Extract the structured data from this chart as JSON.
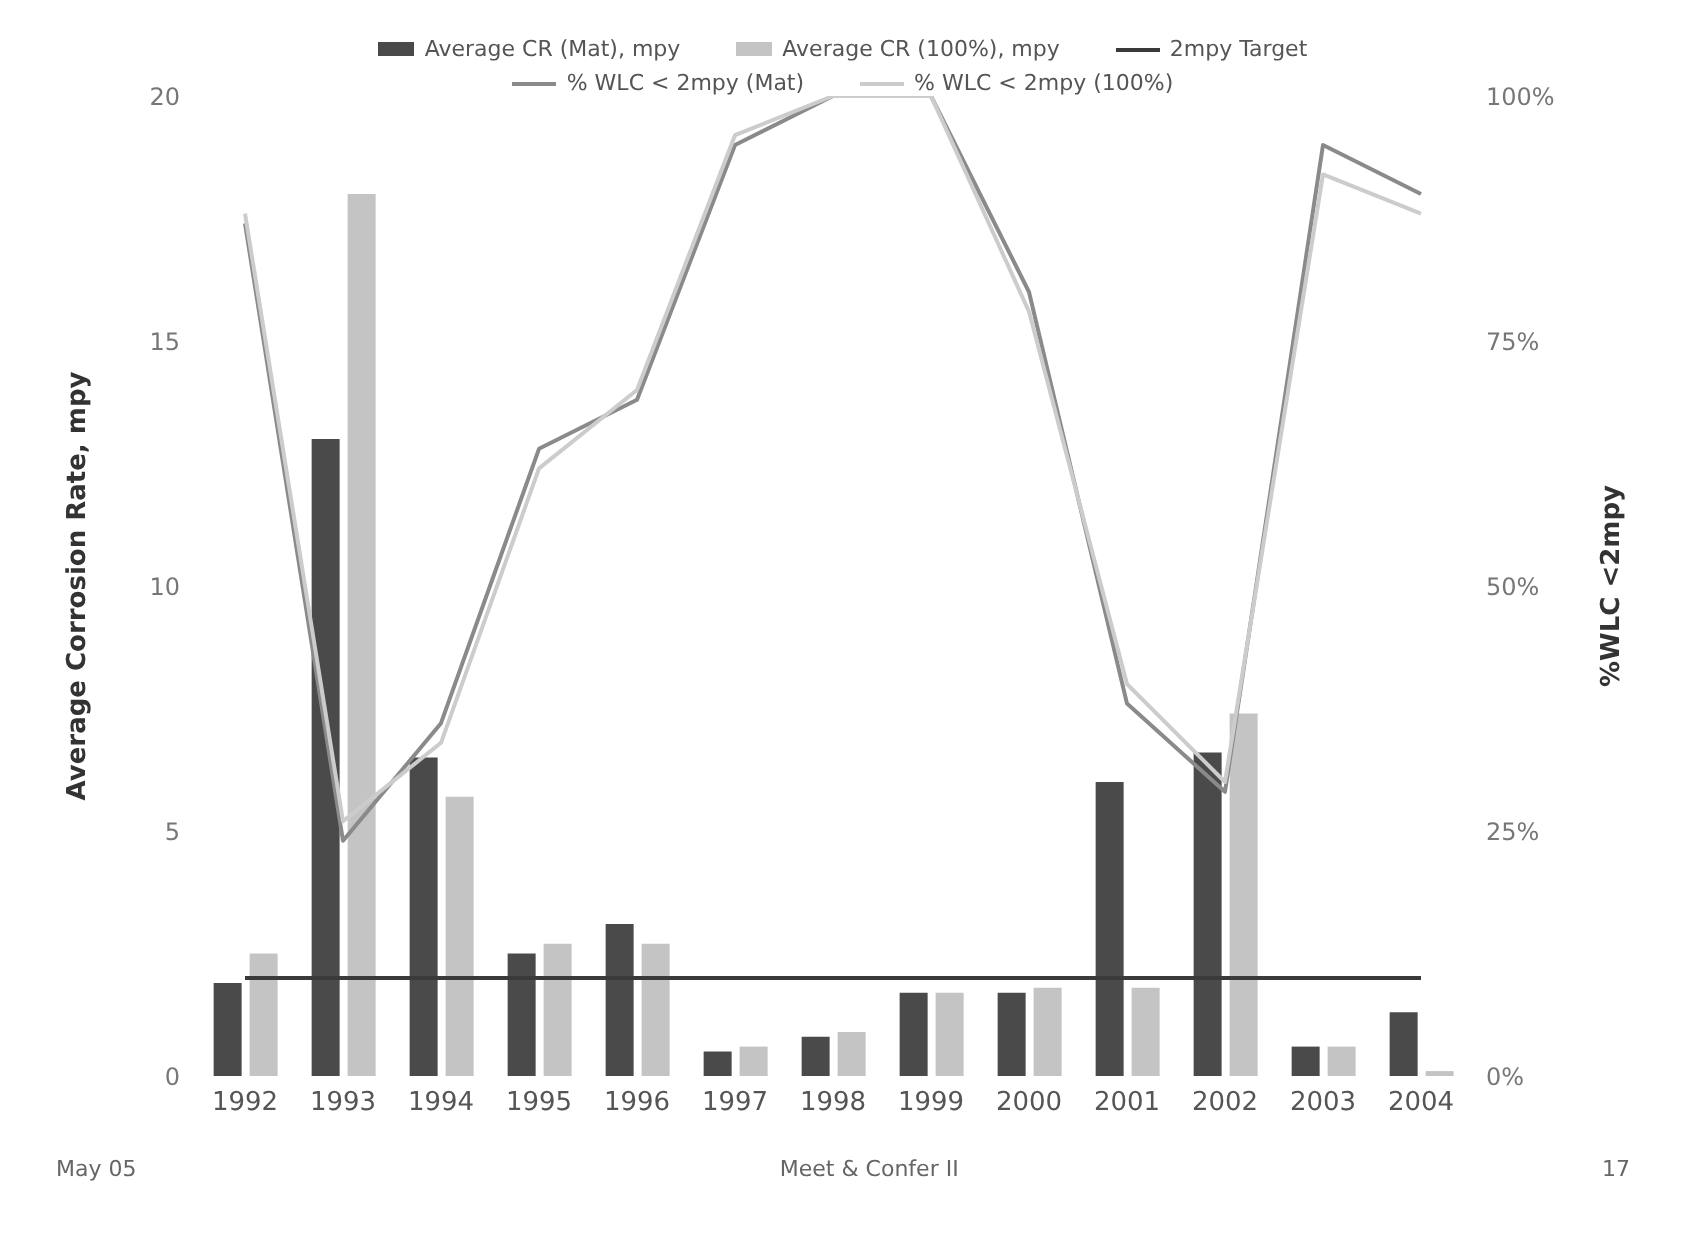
{
  "chart_data": {
    "type": "bar",
    "categories": [
      "1992",
      "1993",
      "1994",
      "1995",
      "1996",
      "1997",
      "1998",
      "1999",
      "2000",
      "2001",
      "2002",
      "2003",
      "2004"
    ],
    "series": [
      {
        "name": "Average CR (Mat), mpy",
        "color": "#4a4a4a",
        "values": [
          1.9,
          13,
          6.5,
          2.5,
          3.1,
          0.5,
          0.8,
          1.7,
          1.7,
          6.0,
          6.6,
          0.6,
          1.3
        ]
      },
      {
        "name": "Average CR (100%), mpy",
        "color": "#c4c4c4",
        "values": [
          2.5,
          18,
          5.7,
          2.7,
          2.7,
          0.6,
          0.9,
          1.7,
          1.8,
          1.8,
          7.4,
          0.6,
          0.1
        ]
      },
      {
        "name": "2mpy Target",
        "type": "line",
        "color": "#3a3a3a",
        "values": [
          2,
          2,
          2,
          2,
          2,
          2,
          2,
          2,
          2,
          2,
          2,
          2,
          2
        ]
      },
      {
        "name": "% WLC < 2mpy (Mat)",
        "type": "line",
        "axis": "y2",
        "color": "#8a8a8a",
        "values": [
          87,
          24,
          36,
          64,
          69,
          95,
          100,
          100,
          80,
          38,
          29,
          95,
          90
        ]
      },
      {
        "name": "% WLC < 2mpy (100%)",
        "type": "line",
        "axis": "y2",
        "color": "#cccccc",
        "values": [
          88,
          26,
          34,
          62,
          70,
          96,
          100,
          100,
          78,
          40,
          30,
          92,
          88
        ]
      }
    ],
    "ylabel": "Average Corrosion Rate, mpy",
    "y2label": "%WLC <2mpy",
    "ylim": [
      0,
      20
    ],
    "yticks": [
      0,
      5,
      10,
      15,
      20
    ],
    "y2lim": [
      0,
      100
    ],
    "y2ticks": [
      {
        "value": 0,
        "label": "0%"
      },
      {
        "value": 25,
        "label": "25%"
      },
      {
        "value": 50,
        "label": "50%"
      },
      {
        "value": 75,
        "label": "75%"
      },
      {
        "value": 100,
        "label": "100%"
      }
    ],
    "legend": "top",
    "grid": false,
    "marker": "none",
    "annotations": [
      "May 05",
      "Meet & Confer II",
      "17"
    ]
  }
}
